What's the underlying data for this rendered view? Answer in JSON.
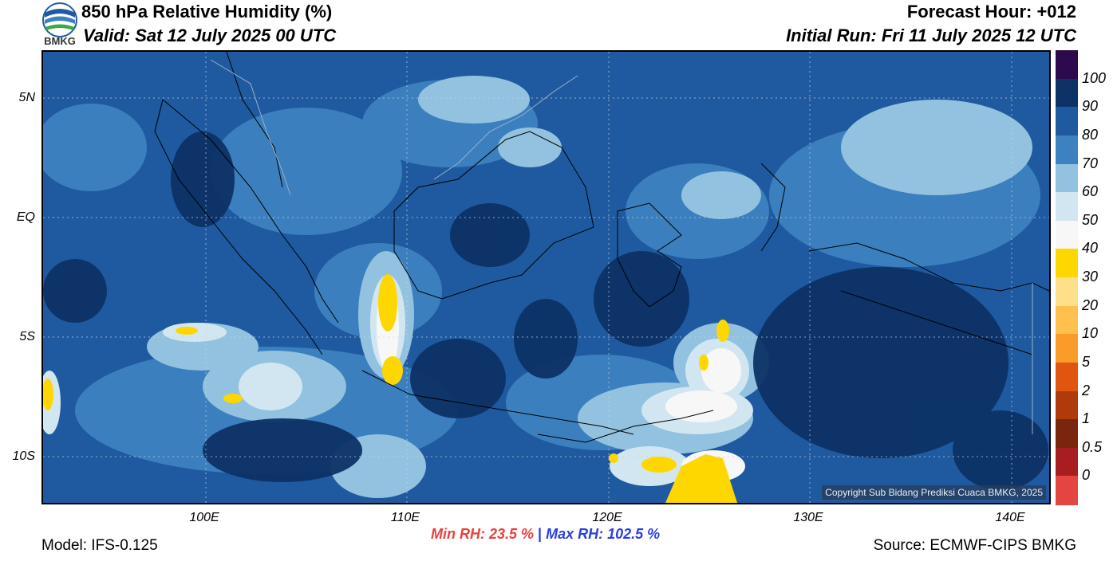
{
  "header": {
    "logo_text": "BMKG",
    "title": "850 hPa Relative Humidity (%)",
    "valid": "Valid: Sat 12 July 2025 00 UTC",
    "forecast_hour": "Forecast Hour: +012",
    "initial_run": "Initial Run: Fri 11 July 2025 12 UTC"
  },
  "map": {
    "lat_labels": [
      "5N",
      "EQ",
      "5S",
      "10S"
    ],
    "lon_labels": [
      "100E",
      "110E",
      "120E",
      "130E",
      "140E"
    ],
    "copyright": "Copyright Sub Bidang Prediksi Cuaca BMKG, 2025"
  },
  "colorbar": {
    "labels": [
      "100",
      "90",
      "80",
      "70",
      "60",
      "50",
      "40",
      "30",
      "20",
      "10",
      "5",
      "2",
      "1",
      "0.5",
      "0"
    ],
    "colors": [
      "#2d0a4e",
      "#0d3266",
      "#1f5aa0",
      "#3d82c0",
      "#92c2e0",
      "#d2e6f2",
      "#f7f7f7",
      "#ffd700",
      "#ffe08a",
      "#ffc04e",
      "#fb9b2a",
      "#e0560e",
      "#b03a0c",
      "#7a260f",
      "#a81e20",
      "#e54540"
    ]
  },
  "footer": {
    "model": "Model: IFS-0.125",
    "min_rh": "Min RH:  23.5 %",
    "separator": "|",
    "max_rh": "Max RH: 102.5 %",
    "source": "Source: ECMWF-CIPS BMKG"
  }
}
